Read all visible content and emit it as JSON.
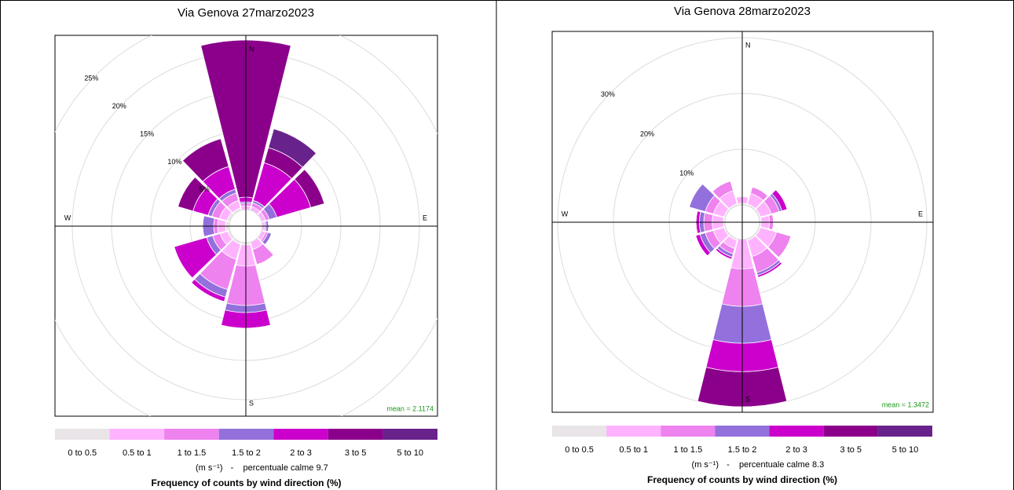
{
  "chart_data": [
    {
      "type": "wind_rose",
      "title": "Via Genova 27marzo2023",
      "directions": [
        0,
        30,
        60,
        90,
        120,
        150,
        180,
        210,
        240,
        270,
        300,
        330
      ],
      "compass_labels": [
        "N",
        "E",
        "S",
        "W"
      ],
      "rlim": [
        0,
        25
      ],
      "rticks": [
        {
          "value": 5,
          "label": "5%"
        },
        {
          "value": 10,
          "label": "10%"
        },
        {
          "value": 15,
          "label": "15%"
        },
        {
          "value": 20,
          "label": "20%"
        },
        {
          "value": 25,
          "label": "25%"
        }
      ],
      "series": [
        {
          "name": "0 to 0.5",
          "color": "#e8e4e8",
          "values": [
            0,
            0,
            0,
            0,
            0,
            0,
            0.3,
            0.3,
            0.3,
            0.5,
            0.4,
            0.3
          ]
        },
        {
          "name": "0.5 to 1",
          "color": "#ffb3ff",
          "values": [
            0.5,
            0.5,
            0.5,
            0.3,
            0.5,
            1,
            2.7,
            2,
            1,
            1,
            1,
            1
          ]
        },
        {
          "name": "1 to 1.5",
          "color": "#ee82ee",
          "values": [
            0.3,
            0.5,
            0.5,
            0.2,
            0.3,
            2,
            5,
            4,
            1,
            0.5,
            1,
            1
          ]
        },
        {
          "name": "1.5 to 2",
          "color": "#9370db",
          "values": [
            0.2,
            0.3,
            1,
            0.3,
            0.5,
            0,
            0.9,
            1,
            0.8,
            1.4,
            0.5,
            0.5
          ]
        },
        {
          "name": "2 to 3",
          "color": "#cc00cc",
          "values": [
            0.6,
            5,
            4.5,
            0,
            0,
            0,
            2,
            0.6,
            4.3,
            0,
            2,
            3
          ]
        },
        {
          "name": "3 to 5",
          "color": "#8b008b",
          "values": [
            20,
            2,
            1.8,
            0,
            0,
            0,
            0,
            0,
            0,
            0,
            2,
            3.7
          ]
        },
        {
          "name": "5 to 10",
          "color": "#68228b",
          "values": [
            0,
            2.5,
            0,
            0,
            0,
            0,
            0,
            0,
            0,
            0,
            0,
            0
          ]
        }
      ],
      "units": "(m s⁻¹)",
      "separator": "-",
      "calm_label": "percentuale calme 9.7",
      "legend_title": "Frequency of counts by wind direction (%)",
      "annotation": "mean = 2.1174"
    },
    {
      "type": "wind_rose",
      "title": "Via Genova 28marzo2023",
      "directions": [
        0,
        30,
        60,
        90,
        120,
        150,
        180,
        210,
        240,
        270,
        300,
        330
      ],
      "compass_labels": [
        "N",
        "E",
        "S",
        "W"
      ],
      "rlim": [
        0,
        30
      ],
      "rticks": [
        {
          "value": 10,
          "label": "10%"
        },
        {
          "value": 20,
          "label": "20%"
        },
        {
          "value": 30,
          "label": "30%"
        }
      ],
      "series": [
        {
          "name": "0 to 0.5",
          "color": "#e8e4e8",
          "values": [
            0.3,
            0.3,
            0.3,
            0.3,
            0.3,
            0.3,
            0,
            0.3,
            0.3,
            0.3,
            0.3,
            0.3
          ]
        },
        {
          "name": "0.5 to 1",
          "color": "#ffb3ff",
          "values": [
            1.2,
            2,
            2,
            1.5,
            3,
            3,
            5.3,
            1.5,
            2,
            2,
            2,
            2.5
          ]
        },
        {
          "name": "1 to 1.5",
          "color": "#ee82ee",
          "values": [
            0,
            1.2,
            1.5,
            0.7,
            2.7,
            3,
            6.7,
            1,
            1.5,
            1.5,
            1.5,
            1.8
          ]
        },
        {
          "name": "1.5 to 2",
          "color": "#9370db",
          "values": [
            0,
            0,
            0.5,
            0,
            0,
            0.5,
            6.6,
            0.6,
            1,
            0.8,
            3,
            0
          ]
        },
        {
          "name": "2 to 3",
          "color": "#cc00cc",
          "values": [
            0,
            0,
            1,
            0,
            0,
            0.4,
            5.1,
            0.4,
            0.8,
            0.6,
            0,
            0
          ]
        },
        {
          "name": "3 to 5",
          "color": "#8b008b",
          "values": [
            0,
            0,
            0,
            0,
            0,
            0,
            6.3,
            0,
            0,
            0,
            0,
            0
          ]
        },
        {
          "name": "5 to 10",
          "color": "#68228b",
          "values": [
            0,
            0,
            0,
            0,
            0,
            0,
            0,
            0,
            0,
            0,
            0,
            0
          ]
        }
      ],
      "units": "(m s⁻¹)",
      "separator": "-",
      "calm_label": "percentuale calme 8.3",
      "legend_title": "Frequency of counts by wind direction (%)",
      "annotation": "mean = 1.3472"
    }
  ]
}
